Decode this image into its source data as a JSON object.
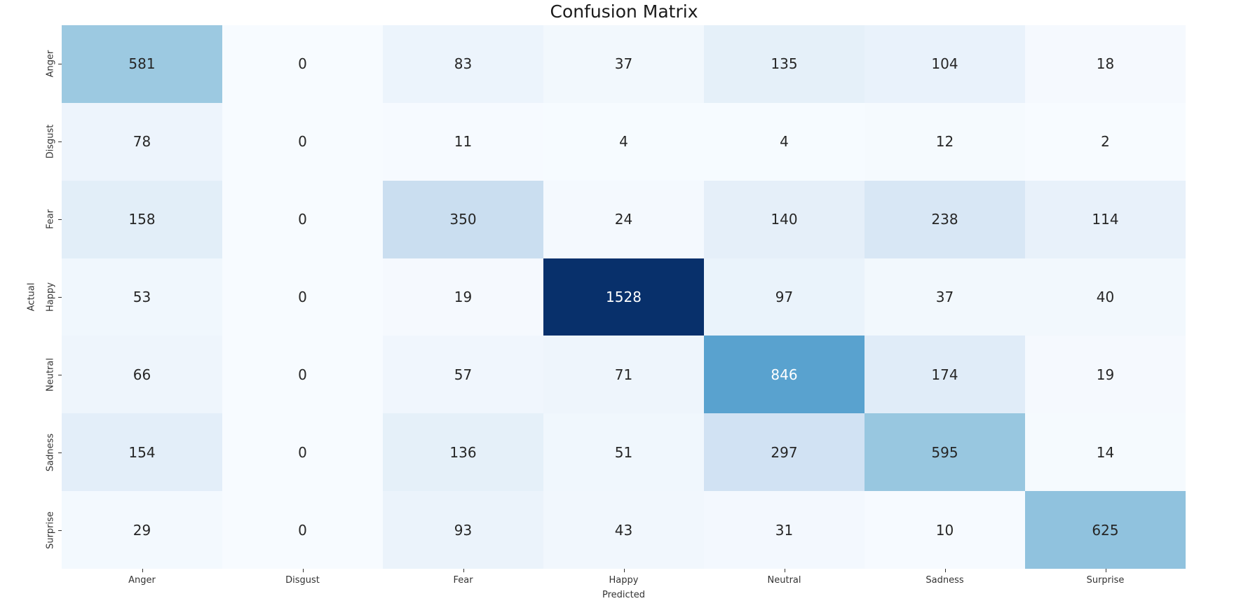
{
  "chart_data": {
    "type": "heatmap",
    "title": "Confusion Matrix",
    "xlabel": "Predicted",
    "ylabel": "Actual",
    "x_categories": [
      "Anger",
      "Disgust",
      "Fear",
      "Happy",
      "Neutral",
      "Sadness",
      "Surprise"
    ],
    "y_categories": [
      "Anger",
      "Disgust",
      "Fear",
      "Happy",
      "Neutral",
      "Sadness",
      "Surprise"
    ],
    "matrix": [
      [
        581,
        0,
        83,
        37,
        135,
        104,
        18
      ],
      [
        78,
        0,
        11,
        4,
        4,
        12,
        2
      ],
      [
        158,
        0,
        350,
        24,
        140,
        238,
        114
      ],
      [
        53,
        0,
        19,
        1528,
        97,
        37,
        40
      ],
      [
        66,
        0,
        57,
        71,
        846,
        174,
        19
      ],
      [
        154,
        0,
        136,
        51,
        297,
        595,
        14
      ],
      [
        29,
        0,
        93,
        43,
        31,
        10,
        625
      ]
    ],
    "vmin": 0,
    "vmax": 1528,
    "colormap": {
      "name": "Blues",
      "stops": [
        "#f7fbff",
        "#deebf7",
        "#c6dbef",
        "#9ecae1",
        "#6baed6",
        "#4292c6",
        "#2171b5",
        "#08519c",
        "#08306b"
      ]
    },
    "annotation_colors": {
      "dark": "#262626",
      "light": "#ffffff"
    },
    "layout": {
      "grid": "off",
      "legend": "none",
      "colorbar": "none",
      "y_tick_rotation": 90
    }
  }
}
